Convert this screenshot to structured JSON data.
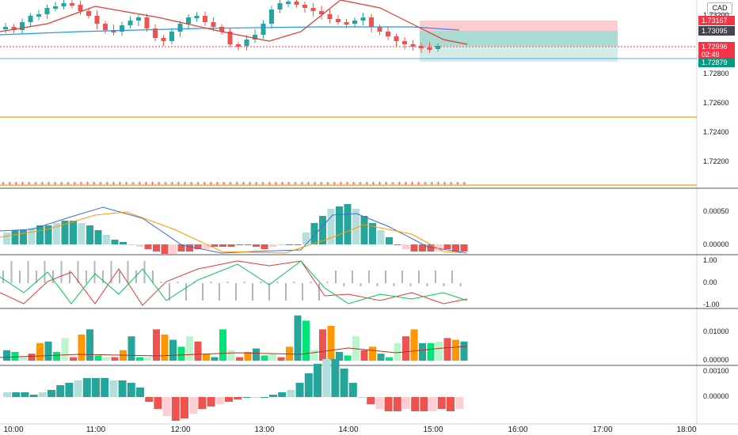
{
  "currency": "CAD",
  "main_axis": {
    "labels": [
      "1.73200",
      "1.72800",
      "1.72600",
      "1.72400",
      "1.72200"
    ],
    "tags": [
      {
        "text": "1.73167",
        "color": "#f23645"
      },
      {
        "text": "1.73095",
        "color": "#434651"
      },
      {
        "text": "1.72996",
        "color": "#f23645",
        "sub": "02:49"
      },
      {
        "text": "1.72879",
        "color": "#089981"
      }
    ]
  },
  "macd_axis": [
    "0.00050",
    "0.00000"
  ],
  "stoch_axis": [
    "1.00",
    "0.00",
    "-1.00"
  ],
  "vol_axis": [
    "0.01000",
    "0.00000"
  ],
  "osc_axis": [
    "0.00100",
    "0.00000"
  ],
  "time_axis": [
    "10:00",
    "11:00",
    "12:00",
    "13:00",
    "14:00",
    "15:00",
    "16:00",
    "17:00",
    "18:00"
  ],
  "colors": {
    "up": "#26a69a",
    "down": "#ef5350",
    "ma_red": "#e53935",
    "ma_blue": "#2196f3",
    "orange": "#ff9800",
    "teal_light": "#b2dfdb",
    "red_light": "#ffcdd2",
    "green_bright": "#00e676",
    "green_light": "#b9f6ca"
  }
}
